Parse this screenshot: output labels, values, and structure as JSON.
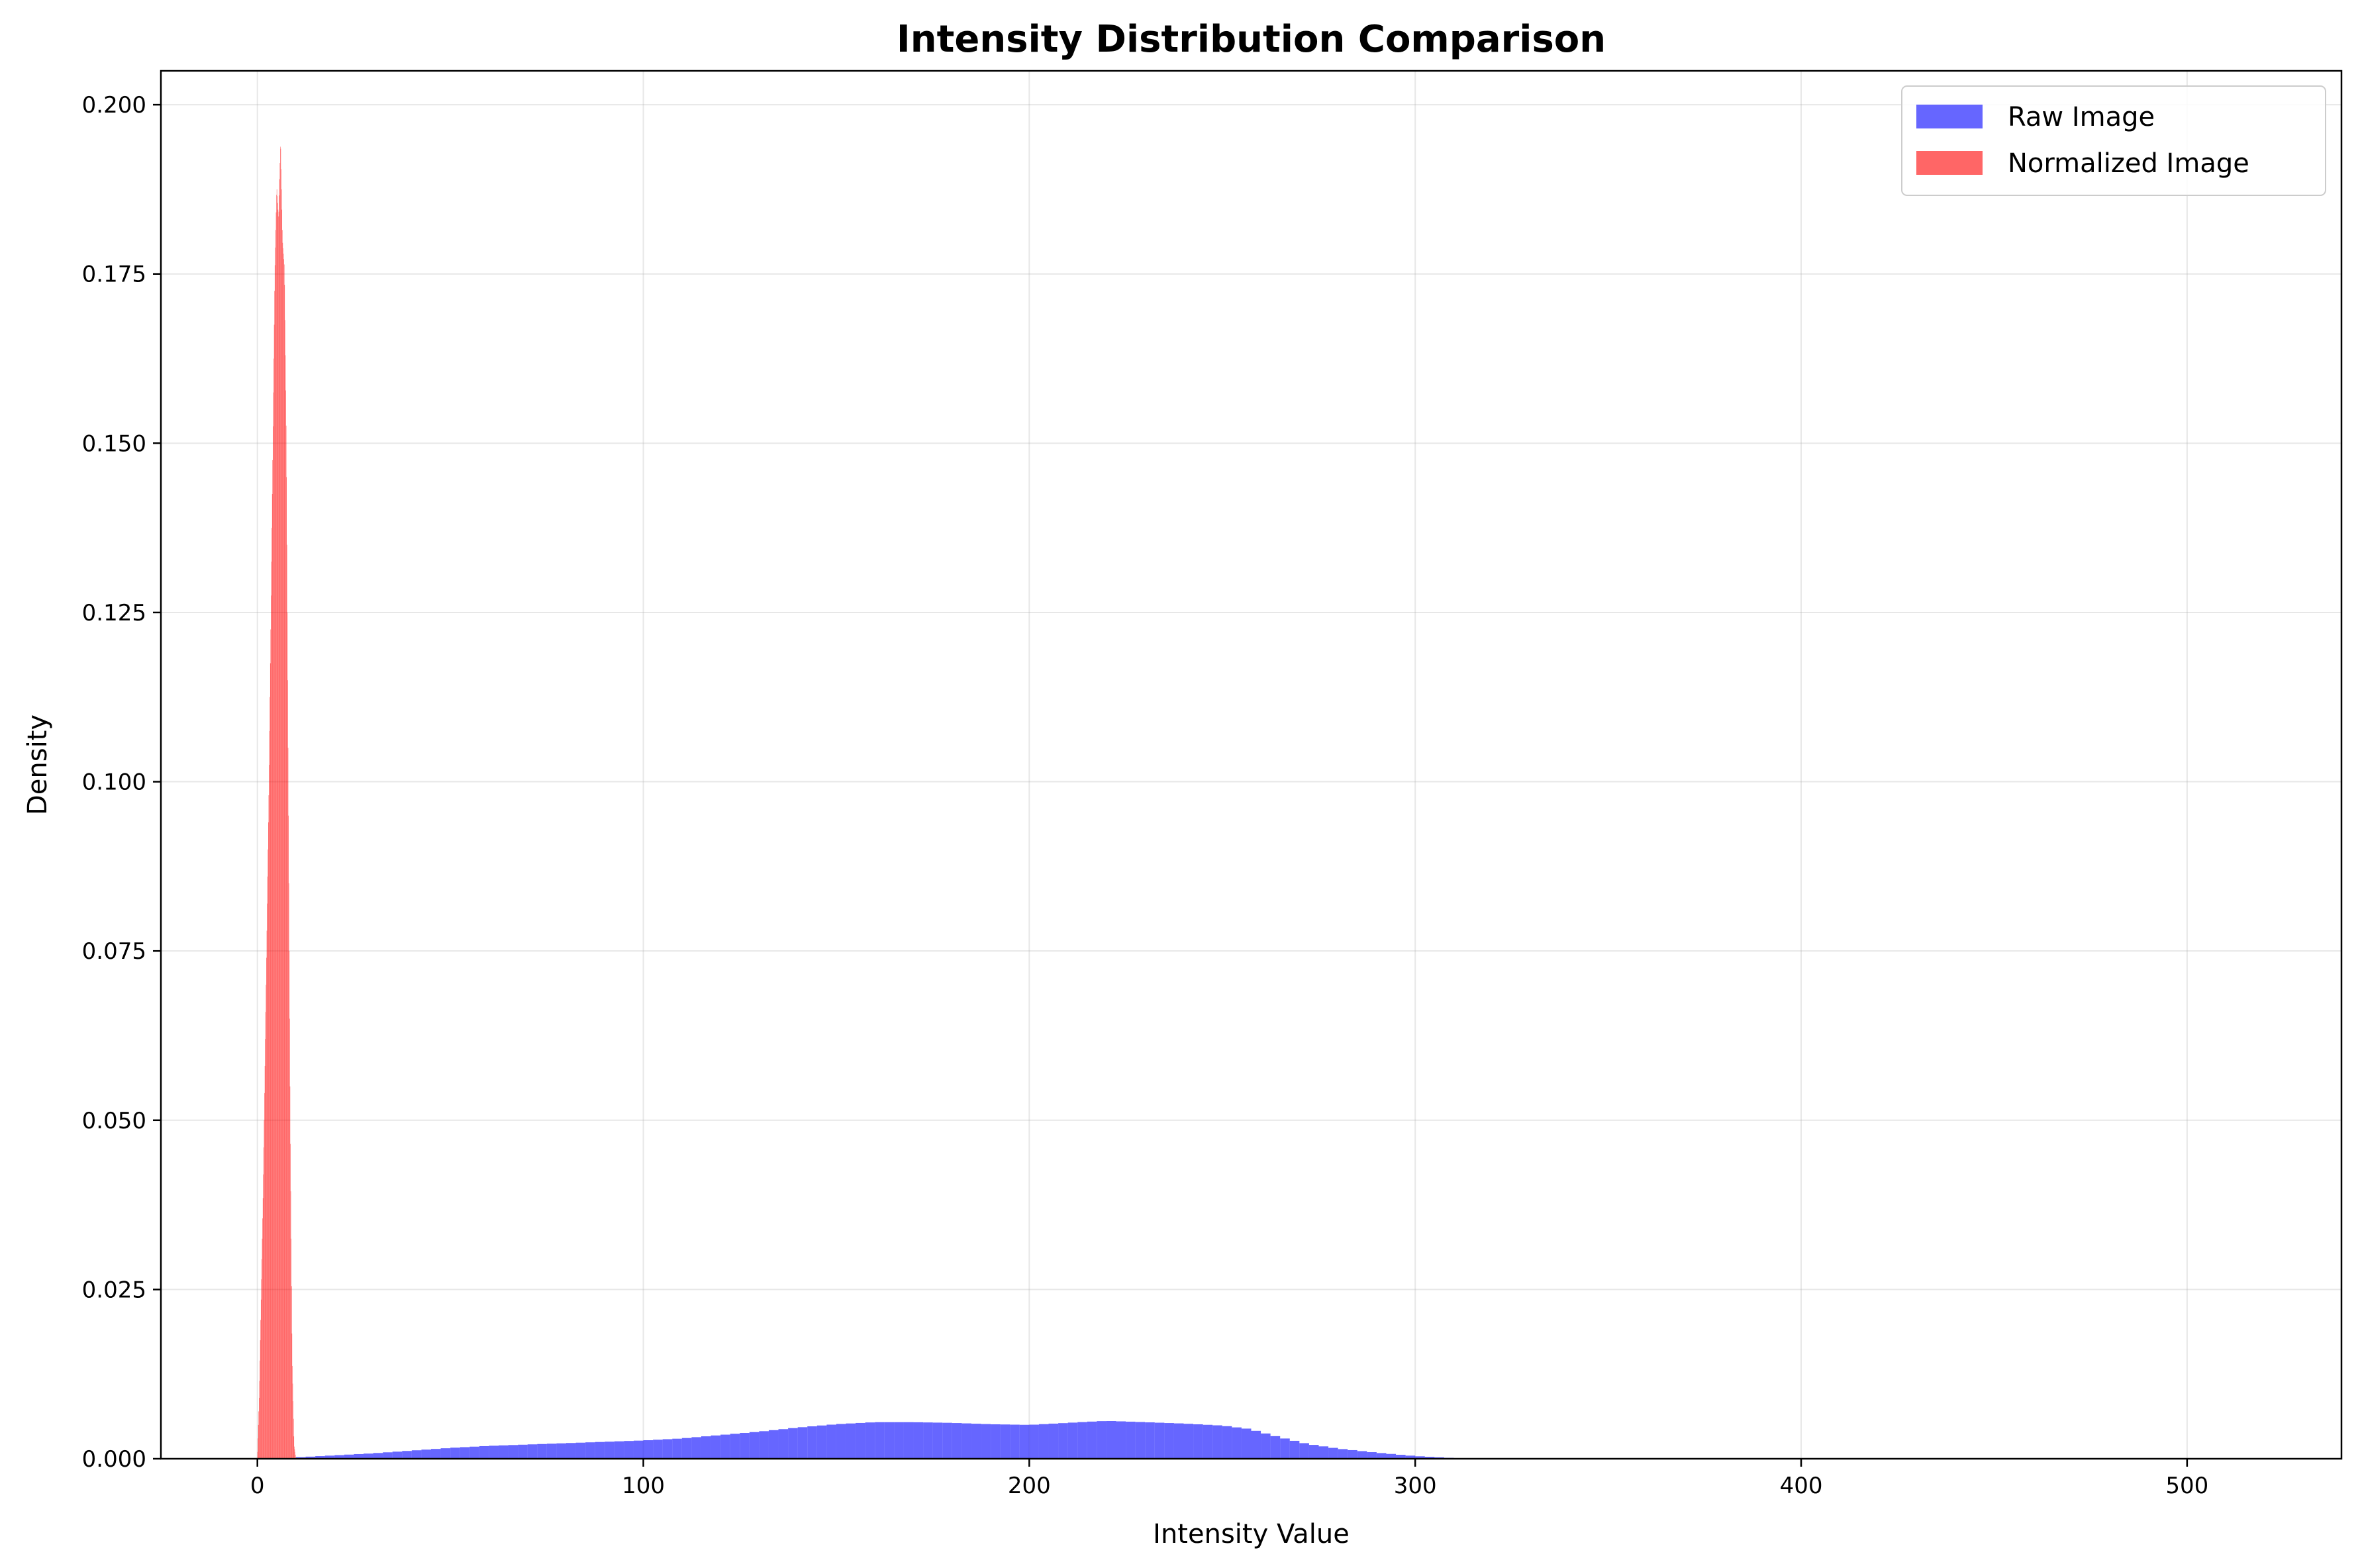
{
  "chart_data": {
    "type": "histogram",
    "title": "Intensity Distribution Comparison",
    "xlabel": "Intensity Value",
    "ylabel": "Density",
    "xlim": [
      -25,
      540
    ],
    "ylim": [
      0,
      0.205
    ],
    "x_ticks": [
      0,
      100,
      200,
      300,
      400,
      500
    ],
    "x_tick_labels": [
      "0",
      "100",
      "200",
      "300",
      "400",
      "500"
    ],
    "y_ticks": [
      0.0,
      0.025,
      0.05,
      0.075,
      0.1,
      0.125,
      0.15,
      0.175,
      0.2
    ],
    "y_tick_labels": [
      "0.000",
      "0.025",
      "0.050",
      "0.075",
      "0.100",
      "0.125",
      "0.150",
      "0.175",
      "0.200"
    ],
    "grid": true,
    "legend_position": "upper right",
    "series": [
      {
        "name": "Raw Image",
        "color": "#0000ff",
        "alpha": 0.6,
        "bin_width": 2.5,
        "points": [
          [
            10,
            0.0002
          ],
          [
            20,
            0.0005
          ],
          [
            30,
            0.0008
          ],
          [
            40,
            0.0012
          ],
          [
            50,
            0.0016
          ],
          [
            60,
            0.0019
          ],
          [
            70,
            0.0021
          ],
          [
            80,
            0.0023
          ],
          [
            90,
            0.0025
          ],
          [
            100,
            0.0027
          ],
          [
            110,
            0.003
          ],
          [
            120,
            0.0035
          ],
          [
            130,
            0.004
          ],
          [
            140,
            0.0046
          ],
          [
            150,
            0.0051
          ],
          [
            160,
            0.0054
          ],
          [
            170,
            0.0054
          ],
          [
            180,
            0.0053
          ],
          [
            190,
            0.0051
          ],
          [
            200,
            0.005
          ],
          [
            210,
            0.0053
          ],
          [
            220,
            0.0056
          ],
          [
            230,
            0.0054
          ],
          [
            240,
            0.0052
          ],
          [
            250,
            0.0049
          ],
          [
            257,
            0.0044
          ],
          [
            264,
            0.0033
          ],
          [
            272,
            0.0022
          ],
          [
            280,
            0.0015
          ],
          [
            290,
            0.0009
          ],
          [
            300,
            0.0004
          ],
          [
            310,
            0.0001
          ],
          [
            318,
            0.0
          ]
        ]
      },
      {
        "name": "Normalized Image",
        "color": "#ff0000",
        "alpha": 0.6,
        "bin_width": 0.1,
        "points": [
          [
            0.0,
            0.0
          ],
          [
            0.5,
            0.01
          ],
          [
            1.0,
            0.025
          ],
          [
            1.5,
            0.04
          ],
          [
            2.0,
            0.06
          ],
          [
            2.5,
            0.08
          ],
          [
            3.0,
            0.1
          ],
          [
            3.5,
            0.125
          ],
          [
            4.0,
            0.15
          ],
          [
            4.5,
            0.175
          ],
          [
            5.0,
            0.188
          ],
          [
            5.5,
            0.183
          ],
          [
            6.0,
            0.195
          ],
          [
            6.5,
            0.18
          ],
          [
            7.0,
            0.176
          ],
          [
            7.5,
            0.15
          ],
          [
            8.0,
            0.1
          ],
          [
            8.5,
            0.05
          ],
          [
            9.0,
            0.015
          ],
          [
            9.5,
            0.002
          ],
          [
            10.0,
            0.0
          ]
        ]
      }
    ]
  }
}
